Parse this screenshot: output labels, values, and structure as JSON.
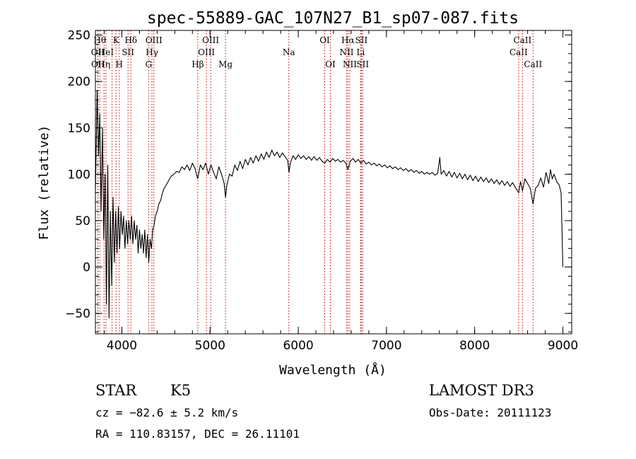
{
  "chart_data": {
    "type": "line",
    "title": "spec-55889-GAC_107N27_B1_sp07-087.fits",
    "xlabel": "Wavelength (Å)",
    "ylabel": "Flux (relative)",
    "xlim": [
      3700,
      9100
    ],
    "ylim": [
      -72,
      255
    ],
    "xticks": [
      4000,
      5000,
      6000,
      7000,
      8000,
      9000
    ],
    "yticks": [
      -50,
      0,
      50,
      100,
      150,
      200,
      250
    ],
    "grid": false,
    "series": [
      {
        "points": [
          [
            3700,
            80
          ],
          [
            3720,
            190
          ],
          [
            3735,
            120
          ],
          [
            3750,
            165
          ],
          [
            3765,
            60
          ],
          [
            3780,
            150
          ],
          [
            3795,
            30
          ],
          [
            3810,
            100
          ],
          [
            3825,
            -40
          ],
          [
            3840,
            110
          ],
          [
            3855,
            -55
          ],
          [
            3870,
            60
          ],
          [
            3885,
            -20
          ],
          [
            3900,
            75
          ],
          [
            3915,
            5
          ],
          [
            3930,
            60
          ],
          [
            3945,
            15
          ],
          [
            3960,
            65
          ],
          [
            3975,
            20
          ],
          [
            3990,
            60
          ],
          [
            4005,
            35
          ],
          [
            4020,
            55
          ],
          [
            4035,
            20
          ],
          [
            4050,
            50
          ],
          [
            4065,
            25
          ],
          [
            4080,
            50
          ],
          [
            4095,
            30
          ],
          [
            4110,
            55
          ],
          [
            4125,
            25
          ],
          [
            4140,
            50
          ],
          [
            4155,
            30
          ],
          [
            4170,
            45
          ],
          [
            4185,
            15
          ],
          [
            4200,
            40
          ],
          [
            4215,
            20
          ],
          [
            4230,
            35
          ],
          [
            4245,
            15
          ],
          [
            4260,
            40
          ],
          [
            4275,
            10
          ],
          [
            4290,
            35
          ],
          [
            4305,
            5
          ],
          [
            4320,
            30
          ],
          [
            4335,
            20
          ],
          [
            4350,
            40
          ],
          [
            4365,
            45
          ],
          [
            4380,
            55
          ],
          [
            4400,
            60
          ],
          [
            4420,
            68
          ],
          [
            4440,
            72
          ],
          [
            4460,
            80
          ],
          [
            4480,
            85
          ],
          [
            4500,
            88
          ],
          [
            4530,
            93
          ],
          [
            4560,
            98
          ],
          [
            4590,
            100
          ],
          [
            4620,
            103
          ],
          [
            4650,
            102
          ],
          [
            4680,
            108
          ],
          [
            4710,
            105
          ],
          [
            4740,
            110
          ],
          [
            4770,
            104
          ],
          [
            4800,
            112
          ],
          [
            4830,
            106
          ],
          [
            4860,
            95
          ],
          [
            4890,
            110
          ],
          [
            4920,
            105
          ],
          [
            4950,
            112
          ],
          [
            4980,
            100
          ],
          [
            5010,
            110
          ],
          [
            5040,
            102
          ],
          [
            5070,
            95
          ],
          [
            5100,
            108
          ],
          [
            5130,
            100
          ],
          [
            5160,
            90
          ],
          [
            5175,
            75
          ],
          [
            5190,
            88
          ],
          [
            5220,
            100
          ],
          [
            5250,
            98
          ],
          [
            5280,
            110
          ],
          [
            5310,
            104
          ],
          [
            5340,
            114
          ],
          [
            5370,
            106
          ],
          [
            5400,
            116
          ],
          [
            5430,
            110
          ],
          [
            5460,
            118
          ],
          [
            5490,
            112
          ],
          [
            5520,
            120
          ],
          [
            5550,
            114
          ],
          [
            5580,
            122
          ],
          [
            5610,
            116
          ],
          [
            5640,
            124
          ],
          [
            5670,
            118
          ],
          [
            5700,
            126
          ],
          [
            5730,
            120
          ],
          [
            5760,
            124
          ],
          [
            5790,
            118
          ],
          [
            5820,
            123
          ],
          [
            5850,
            119
          ],
          [
            5880,
            115
          ],
          [
            5895,
            102
          ],
          [
            5910,
            112
          ],
          [
            5940,
            120
          ],
          [
            5970,
            116
          ],
          [
            6000,
            121
          ],
          [
            6030,
            117
          ],
          [
            6060,
            120
          ],
          [
            6090,
            116
          ],
          [
            6120,
            119
          ],
          [
            6150,
            115
          ],
          [
            6180,
            119
          ],
          [
            6210,
            115
          ],
          [
            6240,
            118
          ],
          [
            6270,
            114
          ],
          [
            6300,
            112
          ],
          [
            6330,
            116
          ],
          [
            6360,
            113
          ],
          [
            6390,
            117
          ],
          [
            6420,
            114
          ],
          [
            6450,
            116
          ],
          [
            6480,
            113
          ],
          [
            6510,
            115
          ],
          [
            6540,
            112
          ],
          [
            6563,
            105
          ],
          [
            6590,
            114
          ],
          [
            6620,
            117
          ],
          [
            6650,
            113
          ],
          [
            6680,
            116
          ],
          [
            6710,
            112
          ],
          [
            6740,
            115
          ],
          [
            6770,
            111
          ],
          [
            6800,
            113
          ],
          [
            6830,
            110
          ],
          [
            6860,
            112
          ],
          [
            6890,
            109
          ],
          [
            6920,
            111
          ],
          [
            6950,
            108
          ],
          [
            6980,
            110
          ],
          [
            7010,
            107
          ],
          [
            7040,
            109
          ],
          [
            7070,
            106
          ],
          [
            7100,
            108
          ],
          [
            7130,
            105
          ],
          [
            7160,
            107
          ],
          [
            7190,
            104
          ],
          [
            7220,
            106
          ],
          [
            7250,
            103
          ],
          [
            7280,
            105
          ],
          [
            7310,
            102
          ],
          [
            7340,
            104
          ],
          [
            7370,
            101
          ],
          [
            7400,
            103
          ],
          [
            7430,
            100
          ],
          [
            7460,
            102
          ],
          [
            7490,
            100
          ],
          [
            7520,
            102
          ],
          [
            7550,
            99
          ],
          [
            7580,
            101
          ],
          [
            7605,
            118
          ],
          [
            7620,
            100
          ],
          [
            7650,
            104
          ],
          [
            7680,
            98
          ],
          [
            7710,
            103
          ],
          [
            7740,
            97
          ],
          [
            7770,
            102
          ],
          [
            7800,
            96
          ],
          [
            7830,
            101
          ],
          [
            7860,
            95
          ],
          [
            7890,
            100
          ],
          [
            7920,
            94
          ],
          [
            7950,
            99
          ],
          [
            7980,
            93
          ],
          [
            8010,
            98
          ],
          [
            8040,
            92
          ],
          [
            8070,
            97
          ],
          [
            8100,
            92
          ],
          [
            8130,
            96
          ],
          [
            8160,
            91
          ],
          [
            8190,
            95
          ],
          [
            8220,
            90
          ],
          [
            8250,
            94
          ],
          [
            8280,
            89
          ],
          [
            8310,
            93
          ],
          [
            8340,
            88
          ],
          [
            8370,
            92
          ],
          [
            8400,
            87
          ],
          [
            8430,
            91
          ],
          [
            8460,
            86
          ],
          [
            8498,
            80
          ],
          [
            8520,
            92
          ],
          [
            8542,
            82
          ],
          [
            8570,
            95
          ],
          [
            8600,
            90
          ],
          [
            8630,
            85
          ],
          [
            8662,
            68
          ],
          [
            8690,
            85
          ],
          [
            8720,
            88
          ],
          [
            8750,
            96
          ],
          [
            8780,
            86
          ],
          [
            8810,
            102
          ],
          [
            8840,
            90
          ],
          [
            8860,
            105
          ],
          [
            8880,
            95
          ],
          [
            8900,
            100
          ],
          [
            8930,
            92
          ],
          [
            8960,
            88
          ],
          [
            8980,
            80
          ],
          [
            8990,
            40
          ],
          [
            9000,
            0
          ]
        ]
      }
    ],
    "line_markers": [
      {
        "wavelength": 3727,
        "label": "OII",
        "row": 1
      },
      {
        "wavelength": 3729,
        "label": "OII",
        "row": 2
      },
      {
        "wavelength": 3750,
        "label": "Hθ",
        "row": 0
      },
      {
        "wavelength": 3798,
        "label": "Hη",
        "row": 2
      },
      {
        "wavelength": 3820,
        "label": "HeI",
        "row": 1
      },
      {
        "wavelength": 3889,
        "label": "",
        "row": -1
      },
      {
        "wavelength": 3934,
        "label": "K",
        "row": 0
      },
      {
        "wavelength": 3970,
        "label": "H",
        "row": 2
      },
      {
        "wavelength": 4070,
        "label": "SII",
        "row": 1
      },
      {
        "wavelength": 4102,
        "label": "Hδ",
        "row": 0
      },
      {
        "wavelength": 4304,
        "label": "G",
        "row": 2
      },
      {
        "wavelength": 4341,
        "label": "Hγ",
        "row": 1
      },
      {
        "wavelength": 4363,
        "label": "OIII",
        "row": 0
      },
      {
        "wavelength": 4861,
        "label": "Hβ",
        "row": 2
      },
      {
        "wavelength": 4959,
        "label": "OIII",
        "row": 1
      },
      {
        "wavelength": 5007,
        "label": "OIII",
        "row": 0
      },
      {
        "wavelength": 5175,
        "label": "Mg",
        "row": 2
      },
      {
        "wavelength": 5893,
        "label": "Na",
        "row": 1
      },
      {
        "wavelength": 6300,
        "label": "OI",
        "row": 0
      },
      {
        "wavelength": 6364,
        "label": "OI",
        "row": 2
      },
      {
        "wavelength": 6548,
        "label": "NII",
        "row": 1
      },
      {
        "wavelength": 6563,
        "label": "Hα",
        "row": 0
      },
      {
        "wavelength": 6584,
        "label": "NII",
        "row": 2
      },
      {
        "wavelength": 6708,
        "label": "Li",
        "row": 1
      },
      {
        "wavelength": 6716,
        "label": "SII",
        "row": 0
      },
      {
        "wavelength": 6731,
        "label": "SII",
        "row": 2
      },
      {
        "wavelength": 8498,
        "label": "CaII",
        "row": 1
      },
      {
        "wavelength": 8542,
        "label": "CaII",
        "row": 0
      },
      {
        "wavelength": 8662,
        "label": "CaII",
        "row": 2
      }
    ]
  },
  "info": {
    "class": "STAR",
    "subclass": "K5",
    "survey": "LAMOST DR3",
    "redshift": "cz = −82.6 ± 5.2 km/s",
    "obs_date": "Obs-Date: 20111123",
    "coords": "RA = 110.83157, DEC =  26.11101"
  }
}
